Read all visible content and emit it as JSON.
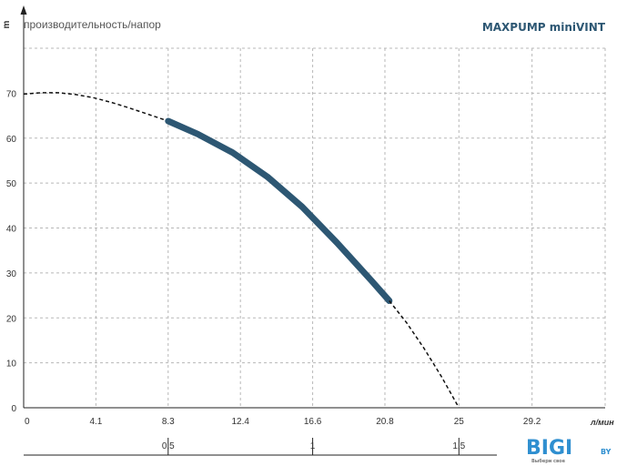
{
  "header": {
    "y_unit": "m",
    "subtitle": "производительность/напор",
    "brand": "MAXPUMP miniVINT"
  },
  "logo": {
    "text": "BIGI",
    "suffix": "BY",
    "tagline": "Выбери свое"
  },
  "colors": {
    "curve": "#2d5773",
    "grid": "#b8b8b8",
    "axis": "#222222",
    "brand": "#2d5773",
    "logo": "#2f8fd0"
  },
  "chart_data": {
    "type": "line",
    "title": "",
    "x_unit": "л/мин",
    "y_unit": "m",
    "xlim": [
      0,
      33.4
    ],
    "ylim": [
      0,
      80
    ],
    "x_ticks": [
      "0",
      "4.1",
      "8.3",
      "12.4",
      "16.6",
      "20.8",
      "25",
      "29.2"
    ],
    "x_tick_values": [
      0,
      4.15,
      8.3,
      12.45,
      16.6,
      20.75,
      25,
      29.2
    ],
    "y_ticks": [
      "0",
      "10",
      "20",
      "30",
      "40",
      "50",
      "60",
      "70"
    ],
    "y_tick_values": [
      0,
      10,
      20,
      30,
      40,
      50,
      60,
      70
    ],
    "secondary_x_ticks": [
      "0,5",
      "1",
      "1,5"
    ],
    "secondary_x_tick_values": [
      8.3,
      16.6,
      25
    ],
    "grid": true,
    "series": [
      {
        "style": "dashed",
        "x": [
          0,
          1,
          2,
          3,
          4,
          5,
          6,
          7,
          8.3
        ],
        "y": [
          69.8,
          70.1,
          70.1,
          69.7,
          69.0,
          68.0,
          66.8,
          65.5,
          63.8
        ]
      },
      {
        "style": "solid-thick",
        "x": [
          8.3,
          10,
          12,
          14,
          16,
          18,
          20,
          21
        ],
        "y": [
          63.8,
          60.9,
          56.8,
          51.4,
          44.7,
          36.7,
          28.2,
          23.8
        ]
      },
      {
        "style": "dashed",
        "x": [
          21,
          22,
          23,
          24,
          25
        ],
        "y": [
          23.8,
          18.9,
          13.2,
          6.9,
          0
        ]
      }
    ]
  }
}
